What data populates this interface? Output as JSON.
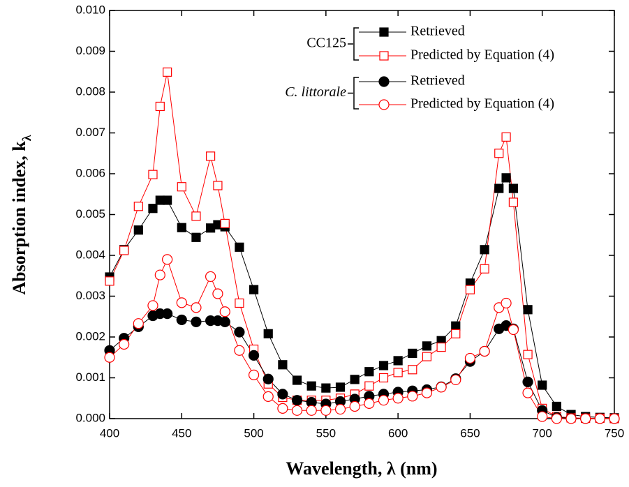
{
  "chart_data": {
    "type": "line",
    "xlabel": "Wavelength, λ (nm)",
    "ylabel": "Absorption index, k",
    "ylabel_subscript": "λ",
    "x": [
      400,
      410,
      420,
      430,
      435,
      440,
      450,
      460,
      470,
      475,
      480,
      490,
      500,
      510,
      520,
      530,
      540,
      550,
      560,
      570,
      580,
      590,
      600,
      610,
      620,
      630,
      640,
      650,
      660,
      670,
      675,
      680,
      690,
      700,
      710,
      720,
      730,
      740,
      750
    ],
    "xlim": [
      400,
      750
    ],
    "xticks": [
      400,
      450,
      500,
      550,
      600,
      650,
      700,
      750
    ],
    "ylim": [
      0,
      0.01
    ],
    "yticks": [
      {
        "value": 0,
        "label": "0.000"
      },
      {
        "value": 0.001,
        "label": "0.001"
      },
      {
        "value": 0.002,
        "label": "0.002"
      },
      {
        "value": 0.003,
        "label": "0.003"
      },
      {
        "value": 0.004,
        "label": "0.004"
      },
      {
        "value": 0.005,
        "label": "0.005"
      },
      {
        "value": 0.006,
        "label": "0.006"
      },
      {
        "value": 0.007,
        "label": "0.007"
      },
      {
        "value": 0.008,
        "label": "0.008"
      },
      {
        "value": 0.009,
        "label": "0.009"
      },
      {
        "value": 0.01,
        "label": "0.010"
      }
    ],
    "legend_groups": [
      "CC125",
      "C. littorale"
    ],
    "series": [
      {
        "name": "Retrieved",
        "color": "#000000",
        "marker": "square",
        "filled": true,
        "values": [
          0.00347,
          0.00414,
          0.00462,
          0.00515,
          0.00535,
          0.00535,
          0.00468,
          0.00444,
          0.00467,
          0.00475,
          0.0047,
          0.0042,
          0.00316,
          0.00208,
          0.00132,
          0.00094,
          0.0008,
          0.00075,
          0.00077,
          0.00096,
          0.00115,
          0.0013,
          0.00142,
          0.0016,
          0.00178,
          0.00191,
          0.00227,
          0.00332,
          0.00414,
          0.00564,
          0.0059,
          0.00564,
          0.00267,
          0.00082,
          0.0003,
          0.0001,
          5e-05,
          3e-05,
          2e-05
        ]
      },
      {
        "name": "Predicted by Equation (4)",
        "color": "#ff0000",
        "marker": "square",
        "filled": false,
        "values": [
          0.00337,
          0.00412,
          0.0052,
          0.00598,
          0.00765,
          0.00849,
          0.00568,
          0.00496,
          0.00643,
          0.00571,
          0.00478,
          0.00283,
          0.0017,
          0.00085,
          0.00052,
          0.00045,
          0.00045,
          0.00045,
          0.0005,
          0.0006,
          0.0008,
          0.001,
          0.00113,
          0.0012,
          0.00152,
          0.00175,
          0.00208,
          0.00316,
          0.00367,
          0.0065,
          0.0069,
          0.0053,
          0.00157,
          0.00025,
          5e-05,
          2e-05,
          1e-05,
          1e-05,
          0
        ]
      },
      {
        "name": "Retrieved",
        "color": "#000000",
        "marker": "circle",
        "filled": true,
        "values": [
          0.00167,
          0.00197,
          0.00225,
          0.00252,
          0.00257,
          0.00257,
          0.00242,
          0.00237,
          0.0024,
          0.0024,
          0.00237,
          0.00212,
          0.00155,
          0.00097,
          0.0006,
          0.00045,
          0.0004,
          0.00036,
          0.00042,
          0.00048,
          0.00055,
          0.0006,
          0.00065,
          0.00068,
          0.00071,
          0.00078,
          0.00098,
          0.0014,
          0.00165,
          0.0022,
          0.00228,
          0.0022,
          0.0009,
          0.0002,
          3e-05,
          1e-05,
          0,
          0,
          0
        ]
      },
      {
        "name": "Predicted by Equation (4)",
        "color": "#ff0000",
        "marker": "circle",
        "filled": false,
        "values": [
          0.0015,
          0.00182,
          0.00233,
          0.00277,
          0.00352,
          0.0039,
          0.00284,
          0.00272,
          0.00348,
          0.00306,
          0.00262,
          0.00167,
          0.00107,
          0.00054,
          0.00025,
          0.0002,
          0.0002,
          0.0002,
          0.00023,
          0.0003,
          0.00037,
          0.00045,
          0.0005,
          0.00055,
          0.00063,
          0.00077,
          0.00095,
          0.00148,
          0.00165,
          0.00272,
          0.00283,
          0.00218,
          0.00063,
          5e-05,
          0,
          0,
          0,
          0,
          0
        ]
      }
    ]
  }
}
